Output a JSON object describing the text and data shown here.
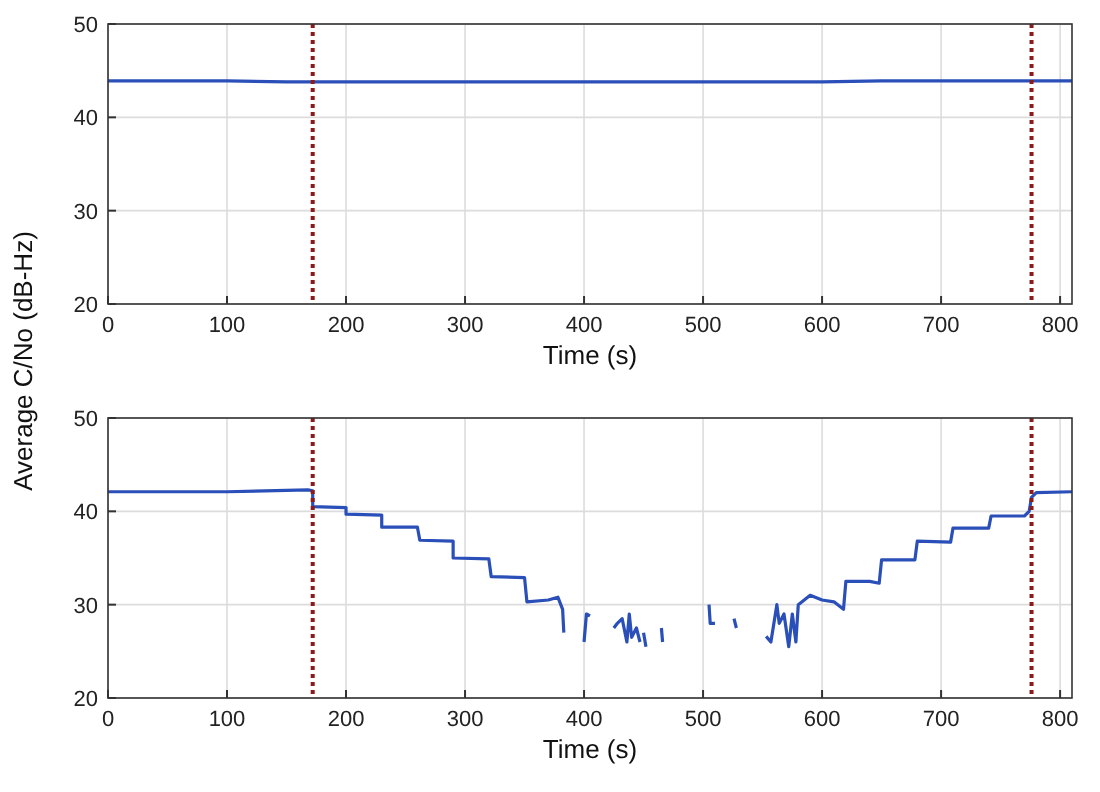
{
  "chart_data": [
    {
      "type": "line",
      "xlabel": "Time (s)",
      "ylabel": "Average C/No (dB-Hz)",
      "xlim": [
        0,
        810
      ],
      "ylim": [
        20,
        50
      ],
      "xticks": [
        0,
        100,
        200,
        300,
        400,
        500,
        600,
        700,
        800
      ],
      "yticks": [
        20,
        30,
        40,
        50
      ],
      "grid": true,
      "line_style": "solid",
      "marker": "none",
      "series": [
        {
          "color": "#2a4fb8",
          "x": [
            0,
            50,
            100,
            150,
            200,
            250,
            300,
            350,
            400,
            450,
            500,
            550,
            600,
            650,
            700,
            750,
            810
          ],
          "values": [
            43.9,
            43.9,
            43.9,
            43.8,
            43.8,
            43.8,
            43.8,
            43.8,
            43.8,
            43.8,
            43.8,
            43.8,
            43.8,
            43.9,
            43.9,
            43.9,
            43.9
          ]
        }
      ],
      "ref_lines": [
        {
          "axis": "x",
          "value": 172,
          "color": "#8b1a1a",
          "line_style": "dotted"
        },
        {
          "axis": "x",
          "value": 776,
          "color": "#8b1a1a",
          "line_style": "dotted"
        }
      ]
    },
    {
      "type": "line",
      "xlabel": "Time (s)",
      "xlim": [
        0,
        810
      ],
      "ylim": [
        20,
        50
      ],
      "xticks": [
        0,
        100,
        200,
        300,
        400,
        500,
        600,
        700,
        800
      ],
      "yticks": [
        20,
        30,
        40,
        50
      ],
      "grid": true,
      "line_style": "solid",
      "marker": "none",
      "series": [
        {
          "color": "#2a4fb8",
          "x": [
            0,
            100,
            168,
            172,
            172,
            200,
            200,
            230,
            230,
            260,
            262,
            290,
            290,
            320,
            322,
            350,
            352,
            370,
            378,
            382,
            383,
            390,
            400,
            402,
            405,
            415,
            425,
            428,
            432,
            436,
            438,
            440,
            444,
            447,
            448,
            450,
            452,
            458,
            465,
            466,
            480,
            505,
            506,
            510,
            518,
            526,
            528,
            540,
            553,
            557,
            562,
            564,
            568,
            572,
            575,
            578,
            580,
            585,
            590,
            600,
            610,
            618,
            620,
            640,
            648,
            650,
            678,
            680,
            708,
            710,
            740,
            742,
            770,
            774,
            776,
            780,
            810
          ],
          "values": [
            42.1,
            42.1,
            42.3,
            42.2,
            40.5,
            40.4,
            39.7,
            39.6,
            38.3,
            38.3,
            36.9,
            36.8,
            35.0,
            34.9,
            33.0,
            32.9,
            30.3,
            30.5,
            30.8,
            29.5,
            27.0,
            null,
            26.0,
            29.0,
            28.8,
            null,
            27.5,
            28.0,
            28.5,
            26.0,
            29.0,
            26.5,
            27.5,
            26.0,
            null,
            27.0,
            25.5,
            null,
            27.5,
            26.0,
            null,
            30.0,
            28.0,
            28.0,
            null,
            28.5,
            27.5,
            null,
            26.6,
            26.0,
            30.0,
            28.0,
            29.0,
            25.5,
            29.0,
            26.0,
            30.0,
            30.5,
            31.0,
            30.5,
            30.3,
            29.5,
            32.5,
            32.5,
            32.3,
            34.8,
            34.8,
            36.8,
            36.7,
            38.2,
            38.2,
            39.5,
            39.5,
            40.0,
            41.5,
            42.0,
            42.1
          ]
        }
      ],
      "ref_lines": [
        {
          "axis": "x",
          "value": 172,
          "color": "#8b1a1a",
          "line_style": "dotted"
        },
        {
          "axis": "x",
          "value": 776,
          "color": "#8b1a1a",
          "line_style": "dotted"
        }
      ]
    }
  ]
}
